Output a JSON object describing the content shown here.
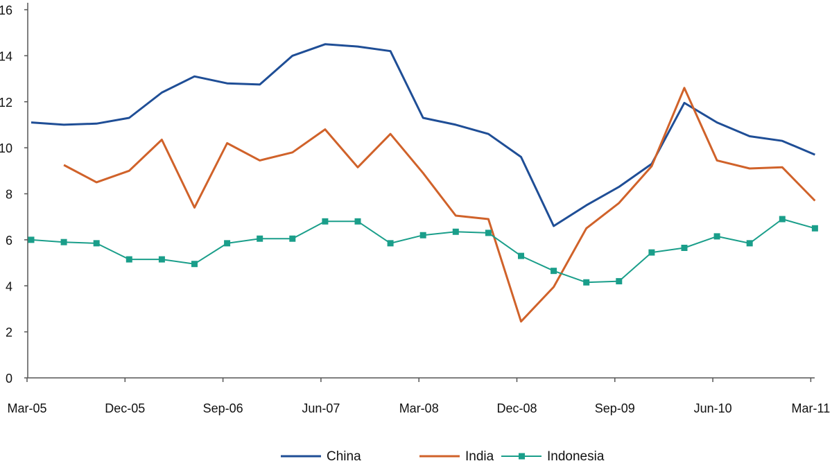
{
  "chart_data": {
    "type": "line",
    "title": "",
    "xlabel": "",
    "ylabel": "",
    "ylim": [
      0,
      16
    ],
    "yticks": [
      "0",
      "2",
      "4",
      "6",
      "8",
      "10",
      "12",
      "14",
      "16"
    ],
    "ytick_values": [
      0,
      2,
      4,
      6,
      8,
      10,
      12,
      14,
      16
    ],
    "categories": [
      "Mar-05",
      "Jun-05",
      "Sep-05",
      "Dec-05",
      "Mar-06",
      "Jun-06",
      "Sep-06",
      "Dec-06",
      "Mar-07",
      "Jun-07",
      "Sep-07",
      "Dec-07",
      "Mar-08",
      "Jun-08",
      "Sep-08",
      "Dec-08",
      "Mar-09",
      "Jun-09",
      "Sep-09",
      "Dec-09",
      "Mar-10",
      "Jun-10",
      "Sep-10",
      "Dec-10",
      "Mar-11"
    ],
    "xtick_labels": [
      "Mar-05",
      "Dec-05",
      "Sep-06",
      "Jun-07",
      "Mar-08",
      "Dec-08",
      "Sep-09",
      "Jun-10",
      "Mar-11"
    ],
    "grid": false,
    "legend_position": "bottom",
    "series": [
      {
        "name": "China",
        "color": "#1f4e96",
        "marker": "none",
        "values": [
          11.1,
          11.0,
          11.05,
          11.3,
          12.4,
          13.1,
          12.8,
          12.75,
          14.0,
          14.5,
          14.4,
          14.2,
          11.3,
          11.0,
          10.6,
          9.6,
          6.6,
          7.5,
          8.3,
          9.3,
          11.95,
          11.1,
          10.5,
          10.3,
          9.7
        ]
      },
      {
        "name": "India",
        "color": "#d0622a",
        "marker": "none",
        "values": [
          null,
          9.25,
          8.5,
          9.0,
          10.35,
          7.4,
          10.2,
          9.45,
          9.8,
          10.8,
          9.15,
          10.6,
          8.9,
          7.05,
          6.9,
          2.45,
          3.95,
          6.5,
          7.6,
          9.2,
          12.6,
          9.45,
          9.1,
          9.15,
          7.7
        ]
      },
      {
        "name": "Indonesia",
        "color": "#1a9e8a",
        "marker": "square",
        "values": [
          6.0,
          5.9,
          5.85,
          5.15,
          5.15,
          4.95,
          5.85,
          6.05,
          6.05,
          6.8,
          6.8,
          5.85,
          6.2,
          6.35,
          6.3,
          5.3,
          4.65,
          4.15,
          4.2,
          5.45,
          5.65,
          6.15,
          5.85,
          6.9,
          6.5
        ]
      }
    ]
  }
}
